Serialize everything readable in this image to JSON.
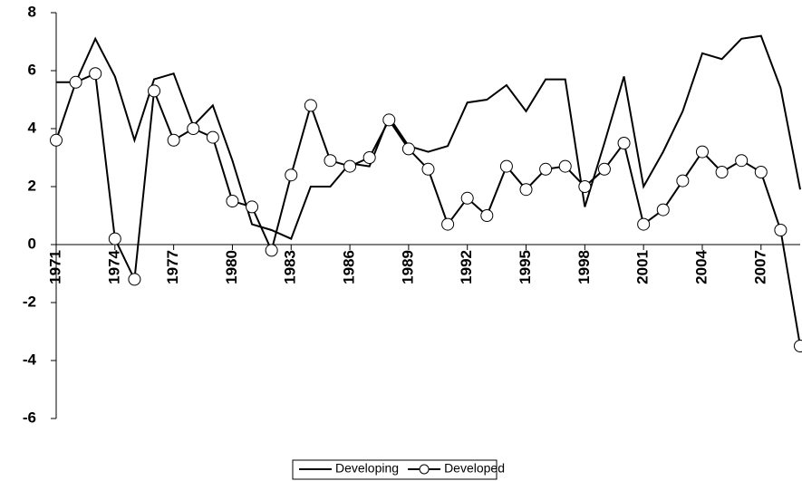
{
  "chart_data": {
    "type": "line",
    "x": [
      1971,
      1972,
      1973,
      1974,
      1975,
      1976,
      1977,
      1978,
      1979,
      1980,
      1981,
      1982,
      1983,
      1984,
      1985,
      1986,
      1987,
      1988,
      1989,
      1990,
      1991,
      1992,
      1993,
      1994,
      1995,
      1996,
      1997,
      1998,
      1999,
      2000,
      2001,
      2002,
      2003,
      2004,
      2005,
      2006,
      2007,
      2008,
      2009
    ],
    "series": [
      {
        "name": "Developing",
        "color": "#000000",
        "marker": "none",
        "values": [
          5.6,
          5.6,
          7.1,
          5.8,
          3.6,
          5.7,
          5.9,
          4.1,
          4.8,
          2.9,
          0.7,
          0.5,
          0.2,
          2.0,
          2.0,
          2.8,
          2.7,
          4.4,
          3.4,
          3.2,
          3.4,
          4.9,
          5.0,
          5.5,
          4.6,
          5.7,
          5.7,
          1.3,
          3.5,
          5.8,
          2.0,
          3.2,
          4.6,
          6.6,
          6.4,
          7.1,
          7.2,
          5.4,
          1.9
        ]
      },
      {
        "name": "Developed",
        "color": "#000000",
        "marker": "circle",
        "values": [
          3.6,
          5.6,
          5.9,
          0.2,
          -1.2,
          5.3,
          3.6,
          4.0,
          3.7,
          1.5,
          1.3,
          -0.2,
          2.4,
          4.8,
          2.9,
          2.7,
          3.0,
          4.3,
          3.3,
          2.6,
          0.7,
          1.6,
          1.0,
          2.7,
          1.9,
          2.6,
          2.7,
          2.0,
          2.6,
          3.5,
          0.7,
          1.2,
          2.2,
          3.2,
          2.5,
          2.9,
          2.5,
          0.5,
          -3.5
        ]
      }
    ],
    "xlim": [
      1971,
      2009
    ],
    "xticks": [
      1971,
      1974,
      1977,
      1980,
      1983,
      1986,
      1989,
      1992,
      1995,
      1998,
      2001,
      2004,
      2007
    ],
    "ylim": [
      -6,
      8
    ],
    "yticks": [
      -6,
      -4,
      -2,
      0,
      2,
      4,
      6,
      8
    ],
    "grid": false,
    "legend": "bottom"
  }
}
